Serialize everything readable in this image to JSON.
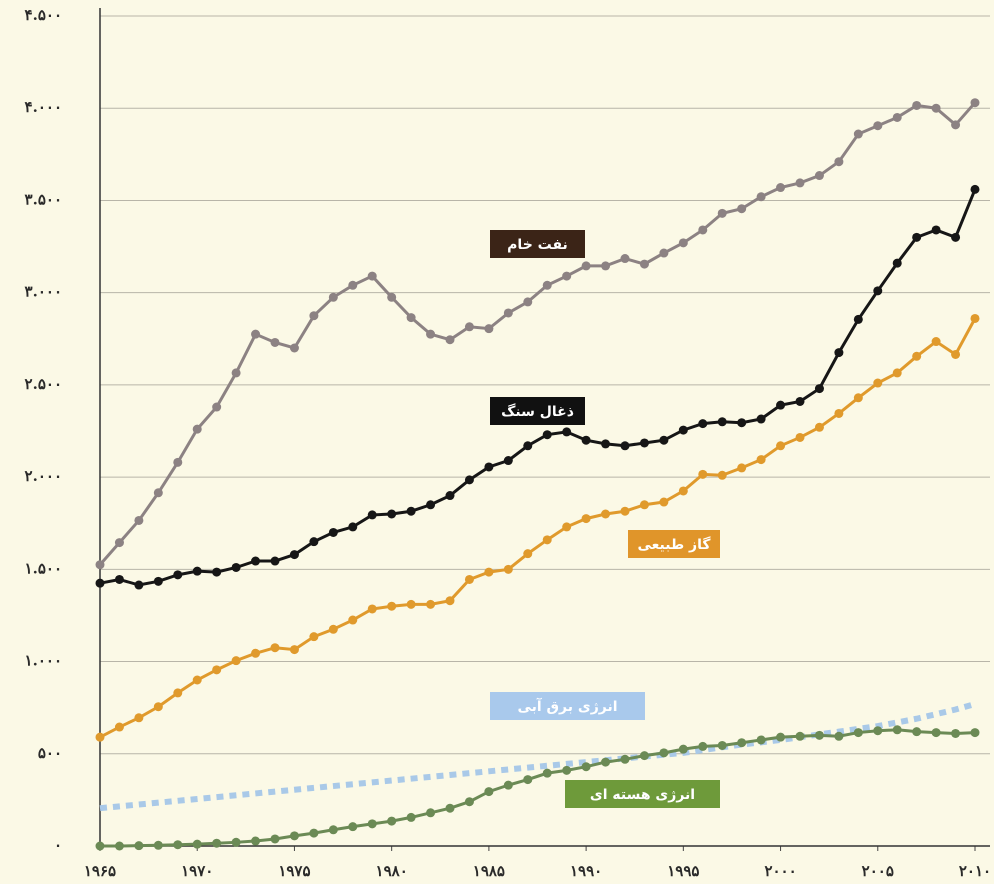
{
  "chart_data": {
    "type": "line",
    "x": [
      1965,
      1966,
      1967,
      1968,
      1969,
      1970,
      1971,
      1972,
      1973,
      1974,
      1975,
      1976,
      1977,
      1978,
      1979,
      1980,
      1981,
      1982,
      1983,
      1984,
      1985,
      1986,
      1987,
      1988,
      1989,
      1990,
      1991,
      1992,
      1993,
      1994,
      1995,
      1996,
      1997,
      1998,
      1999,
      2000,
      2001,
      2002,
      2003,
      2004,
      2005,
      2006,
      2007,
      2008,
      2009,
      2010
    ],
    "xlim": [
      1965,
      2010
    ],
    "xticks": [
      {
        "value": 1965,
        "label": "۱۹۶۵"
      },
      {
        "value": 1970,
        "label": "۱۹۷۰"
      },
      {
        "value": 1975,
        "label": "۱۹۷۵"
      },
      {
        "value": 1980,
        "label": "۱۹۸۰"
      },
      {
        "value": 1985,
        "label": "۱۹۸۵"
      },
      {
        "value": 1990,
        "label": "۱۹۹۰"
      },
      {
        "value": 1995,
        "label": "۱۹۹۵"
      },
      {
        "value": 2000,
        "label": "۲۰۰۰"
      },
      {
        "value": 2005,
        "label": "۲۰۰۵"
      },
      {
        "value": 2010,
        "label": "۲۰۱۰"
      }
    ],
    "ylim": [
      0,
      4500
    ],
    "yticks": [
      {
        "value": 0,
        "label": "۰"
      },
      {
        "value": 500,
        "label": "۵۰۰"
      },
      {
        "value": 1000,
        "label": "۱.۰۰۰"
      },
      {
        "value": 1500,
        "label": "۱.۵۰۰"
      },
      {
        "value": 2000,
        "label": "۲.۰۰۰"
      },
      {
        "value": 2500,
        "label": "۲.۵۰۰"
      },
      {
        "value": 3000,
        "label": "۳.۰۰۰"
      },
      {
        "value": 3500,
        "label": "۳.۵۰۰"
      },
      {
        "value": 4000,
        "label": "۴.۰۰۰"
      },
      {
        "value": 4500,
        "label": "۴.۵۰۰"
      }
    ],
    "grid": true,
    "series": [
      {
        "name": "نفت خام",
        "color": "#8c8283",
        "label_color": "#3b2417",
        "values": [
          1525,
          1645,
          1765,
          1915,
          2080,
          2260,
          2380,
          2565,
          2775,
          2730,
          2700,
          2875,
          2975,
          3040,
          3090,
          2975,
          2865,
          2775,
          2745,
          2815,
          2805,
          2890,
          2950,
          3040,
          3090,
          3145,
          3145,
          3185,
          3155,
          3215,
          3270,
          3340,
          3430,
          3455,
          3520,
          3570,
          3595,
          3635,
          3710,
          3860,
          3905,
          3950,
          4015,
          4000,
          3910,
          4030
        ]
      },
      {
        "name": "ذغال سنگ",
        "color": "#161616",
        "label_color": "#111111",
        "values": [
          1425,
          1445,
          1415,
          1435,
          1470,
          1490,
          1485,
          1510,
          1545,
          1545,
          1580,
          1650,
          1700,
          1730,
          1795,
          1800,
          1815,
          1850,
          1900,
          1985,
          2055,
          2090,
          2170,
          2230,
          2245,
          2200,
          2180,
          2170,
          2185,
          2200,
          2255,
          2290,
          2300,
          2295,
          2315,
          2390,
          2410,
          2480,
          2675,
          2855,
          3010,
          3160,
          3300,
          3340,
          3300,
          3560
        ]
      },
      {
        "name": "گاز طبیعی",
        "color": "#e09a2c",
        "label_color": "#e0952a",
        "values": [
          590,
          645,
          695,
          755,
          830,
          900,
          955,
          1005,
          1045,
          1075,
          1065,
          1135,
          1175,
          1225,
          1285,
          1300,
          1310,
          1310,
          1330,
          1445,
          1485,
          1500,
          1585,
          1660,
          1730,
          1775,
          1800,
          1815,
          1850,
          1865,
          1925,
          2015,
          2010,
          2050,
          2095,
          2170,
          2215,
          2270,
          2345,
          2430,
          2510,
          2565,
          2655,
          2735,
          2665,
          2860
        ]
      },
      {
        "name": "انرژی برق آبی",
        "color": "#a9c9e8",
        "label_color": "#a9c9ec",
        "dashed": true,
        "values": [
          205,
          215,
          225,
          235,
          245,
          255,
          265,
          275,
          285,
          295,
          305,
          315,
          325,
          335,
          345,
          355,
          365,
          375,
          385,
          395,
          405,
          415,
          425,
          435,
          445,
          455,
          465,
          475,
          485,
          495,
          505,
          520,
          535,
          550,
          562,
          575,
          590,
          605,
          620,
          635,
          650,
          670,
          690,
          715,
          740,
          770
        ]
      },
      {
        "name": "انرژی هسته ای",
        "color": "#6b8a55",
        "label_color": "#6e9a3a",
        "values": [
          0,
          0,
          2,
          4,
          7,
          10,
          15,
          20,
          27,
          38,
          55,
          70,
          88,
          105,
          120,
          135,
          155,
          180,
          205,
          240,
          295,
          330,
          360,
          395,
          410,
          430,
          455,
          470,
          490,
          505,
          525,
          540,
          545,
          560,
          575,
          590,
          595,
          600,
          595,
          615,
          625,
          630,
          620,
          615,
          610,
          615
        ]
      }
    ]
  }
}
